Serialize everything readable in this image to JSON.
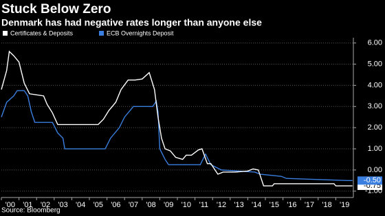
{
  "chart_data": {
    "type": "line",
    "title": "Stuck Below Zero",
    "subtitle": "Denmark has had negative rates longer than anyone else",
    "source": "Source: Bloomberg",
    "xlim": [
      2000,
      2020
    ],
    "ylim": [
      -1.3,
      6.25
    ],
    "xticks": [
      {
        "value": 2000,
        "label": "'00"
      },
      {
        "value": 2001,
        "label": "'01"
      },
      {
        "value": 2002,
        "label": "'02"
      },
      {
        "value": 2003,
        "label": "'03"
      },
      {
        "value": 2004,
        "label": "'04"
      },
      {
        "value": 2005,
        "label": "'05"
      },
      {
        "value": 2006,
        "label": "'06"
      },
      {
        "value": 2007,
        "label": "'07"
      },
      {
        "value": 2008,
        "label": "'08"
      },
      {
        "value": 2009,
        "label": "'09"
      },
      {
        "value": 2010,
        "label": "'10"
      },
      {
        "value": 2011,
        "label": "'11"
      },
      {
        "value": 2012,
        "label": "'12"
      },
      {
        "value": 2013,
        "label": "'13"
      },
      {
        "value": 2014,
        "label": "'14"
      },
      {
        "value": 2015,
        "label": "'15"
      },
      {
        "value": 2016,
        "label": "'16"
      },
      {
        "value": 2017,
        "label": "'17"
      },
      {
        "value": 2018,
        "label": "'18"
      },
      {
        "value": 2019,
        "label": "'19"
      }
    ],
    "yticks": [
      {
        "value": 6,
        "label": "6.00"
      },
      {
        "value": 5,
        "label": "5.00"
      },
      {
        "value": 4,
        "label": "4.00"
      },
      {
        "value": 3,
        "label": "3.00"
      },
      {
        "value": 2,
        "label": "2.00"
      },
      {
        "value": 1,
        "label": "1.00"
      },
      {
        "value": 0,
        "label": "0.00"
      },
      {
        "value": -1,
        "label": "-1.00"
      }
    ],
    "grid": true,
    "series": [
      {
        "name": "Certificates & Deposits",
        "color": "#ffffff",
        "x": [
          2000.0,
          2000.3,
          2000.45,
          2000.7,
          2001.0,
          2001.3,
          2001.6,
          2002.0,
          2002.4,
          2002.6,
          2002.9,
          2003.2,
          2004.0,
          2005.5,
          2005.8,
          2006.1,
          2006.5,
          2006.8,
          2007.2,
          2007.6,
          2008.0,
          2008.4,
          2008.7,
          2008.9,
          2009.1,
          2009.3,
          2009.6,
          2009.9,
          2010.3,
          2010.5,
          2010.8,
          2011.2,
          2011.4,
          2011.7,
          2011.9,
          2012.3,
          2012.6,
          2013.3,
          2014.0,
          2014.3,
          2014.6,
          2014.9,
          2015.4,
          2015.5,
          2016.0,
          2018.0,
          2018.9,
          2019.0,
          2019.95
        ],
        "values": [
          3.8,
          4.7,
          5.6,
          5.4,
          5.1,
          4.1,
          3.6,
          3.55,
          3.5,
          3.1,
          2.7,
          2.15,
          2.15,
          2.15,
          2.4,
          2.8,
          3.2,
          3.8,
          4.25,
          4.25,
          4.3,
          4.6,
          3.8,
          2.5,
          1.5,
          1.0,
          0.9,
          0.6,
          0.5,
          0.7,
          0.7,
          0.95,
          1.0,
          0.3,
          0.3,
          -0.2,
          -0.1,
          -0.1,
          -0.05,
          0.05,
          0.0,
          -0.75,
          -0.75,
          -0.65,
          -0.65,
          -0.65,
          -0.65,
          -0.75,
          -0.75
        ],
        "end_label": {
          "value": -0.75,
          "label": "-0.75"
        }
      },
      {
        "name": "ECB Overnights  Deposit",
        "color": "#3a7fe0",
        "x": [
          2000.0,
          2000.3,
          2000.7,
          2000.9,
          2001.3,
          2001.5,
          2001.7,
          2001.9,
          2002.9,
          2003.2,
          2003.5,
          2003.6,
          2005.9,
          2006.2,
          2006.7,
          2007.0,
          2007.5,
          2008.6,
          2008.8,
          2008.9,
          2009.0,
          2009.3,
          2009.5,
          2011.3,
          2011.6,
          2011.9,
          2012.5,
          2014.4,
          2014.7,
          2015.9,
          2016.2,
          2019.7,
          2019.95
        ],
        "values": [
          2.5,
          3.2,
          3.5,
          3.75,
          3.75,
          3.5,
          2.75,
          2.25,
          2.25,
          1.75,
          1.5,
          1.0,
          1.0,
          1.5,
          2.0,
          2.5,
          3.0,
          3.0,
          3.25,
          2.75,
          1.0,
          0.5,
          0.25,
          0.25,
          0.75,
          0.25,
          0.0,
          -0.1,
          -0.2,
          -0.3,
          -0.4,
          -0.5,
          -0.5
        ],
        "end_label": {
          "value": -0.5,
          "label": "-0.50"
        }
      }
    ]
  }
}
